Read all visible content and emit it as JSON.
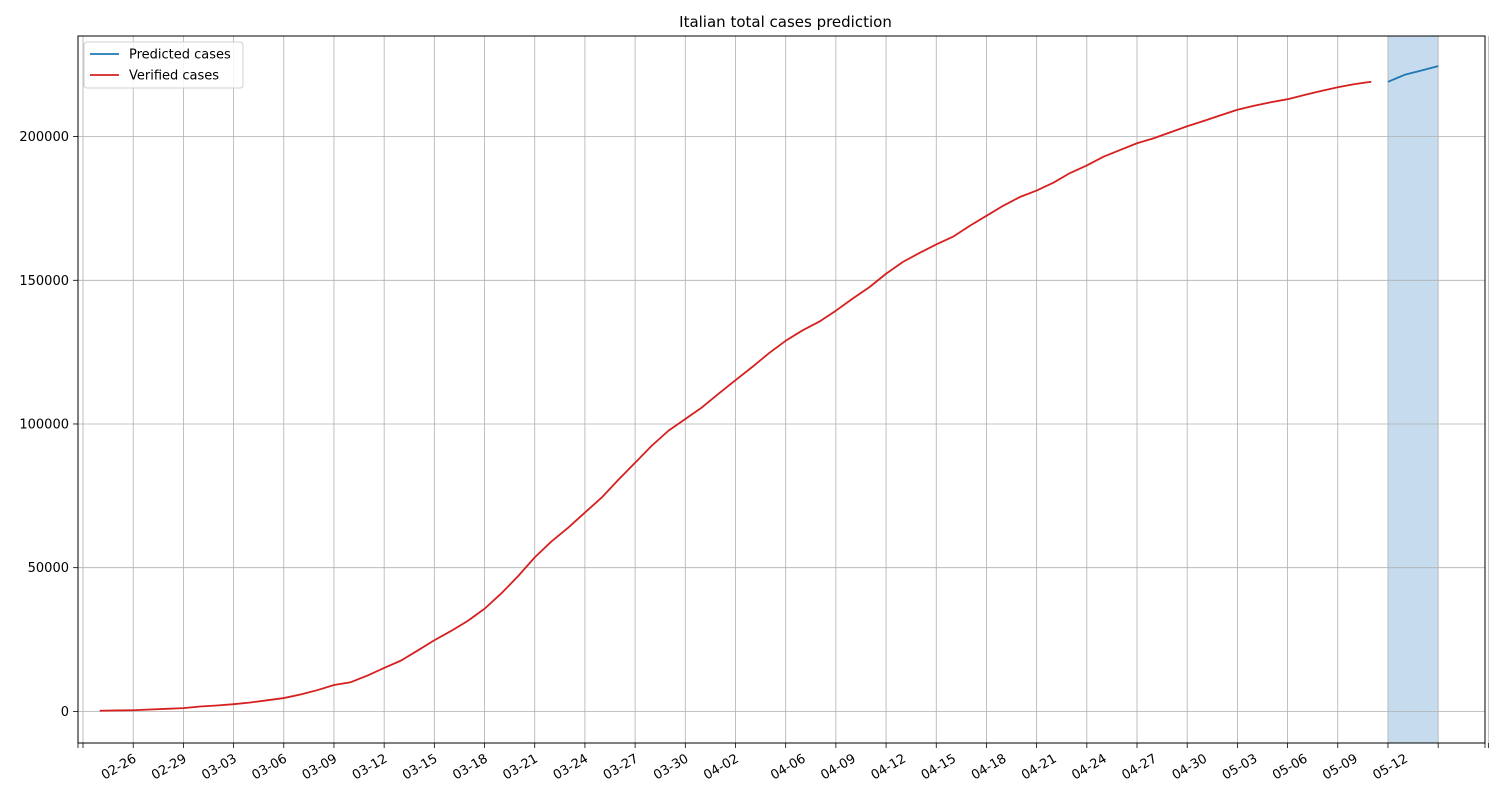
{
  "chart_data": {
    "type": "line",
    "title": "Italian total cases prediction",
    "xlabel": "",
    "ylabel": "",
    "ylim": [
      -11000,
      235000
    ],
    "grid": true,
    "legend_position": "top-left",
    "x_dates": [
      "02-24",
      "02-25",
      "02-26",
      "02-27",
      "02-28",
      "02-29",
      "03-01",
      "03-02",
      "03-03",
      "03-04",
      "03-05",
      "03-06",
      "03-07",
      "03-08",
      "03-09",
      "03-10",
      "03-11",
      "03-12",
      "03-13",
      "03-14",
      "03-15",
      "03-16",
      "03-17",
      "03-18",
      "03-19",
      "03-20",
      "03-21",
      "03-22",
      "03-23",
      "03-24",
      "03-25",
      "03-26",
      "03-27",
      "03-28",
      "03-29",
      "03-30",
      "03-31",
      "04-01",
      "04-02",
      "04-03",
      "04-04",
      "04-05",
      "04-06",
      "04-07",
      "04-08",
      "04-09",
      "04-10",
      "04-11",
      "04-12",
      "04-13",
      "04-14",
      "04-15",
      "04-16",
      "04-17",
      "04-18",
      "04-19",
      "04-20",
      "04-21",
      "04-22",
      "04-23",
      "04-24",
      "04-25",
      "04-26",
      "04-27",
      "04-28",
      "04-29",
      "04-30",
      "05-01",
      "05-02",
      "05-03",
      "05-04",
      "05-05",
      "05-06",
      "05-07",
      "05-08",
      "05-09",
      "05-10",
      "05-11",
      "05-12",
      "05-13",
      "05-14"
    ],
    "x_ticks": [
      "02-26",
      "02-29",
      "03-03",
      "03-06",
      "03-09",
      "03-12",
      "03-15",
      "03-18",
      "03-21",
      "03-24",
      "03-27",
      "03-30",
      "04-02",
      "04-06",
      "04-09",
      "04-12",
      "04-15",
      "04-18",
      "04-21",
      "04-24",
      "04-27",
      "04-30",
      "05-03",
      "05-06",
      "05-09",
      "05-12"
    ],
    "y_ticks": [
      0,
      50000,
      100000,
      150000,
      200000
    ],
    "series": [
      {
        "name": "Predicted cases",
        "color": "#1f77b4",
        "start_date": "05-11",
        "values": [
          219070,
          221500,
          223000,
          224500
        ]
      },
      {
        "name": "Verified cases",
        "color": "#d62020",
        "start_date": "02-24",
        "values": [
          229,
          322,
          400,
          650,
          888,
          1128,
          1694,
          2036,
          2502,
          3089,
          3858,
          4636,
          5883,
          7375,
          9172,
          10149,
          12462,
          15113,
          17660,
          21157,
          24747,
          27980,
          31506,
          35713,
          41035,
          47021,
          53578,
          59138,
          63927,
          69176,
          74386,
          80589,
          86498,
          92472,
          97689,
          101739,
          105792,
          110574,
          115242,
          119827,
          124632,
          128948,
          132547,
          135586,
          139422,
          143626,
          147577,
          152271,
          156363,
          159516,
          162488,
          165155,
          168941,
          172434,
          175925,
          178972,
          181228,
          183957,
          187327,
          189973,
          192994,
          195351,
          197675,
          199414,
          201505,
          203591,
          205463,
          207428,
          209328,
          210717,
          211938,
          213013,
          214457,
          215858,
          217185,
          218268,
          219070
        ]
      }
    ],
    "shaded_region": {
      "from": "05-11",
      "to": "05-14",
      "color": "#c6dcee"
    }
  }
}
